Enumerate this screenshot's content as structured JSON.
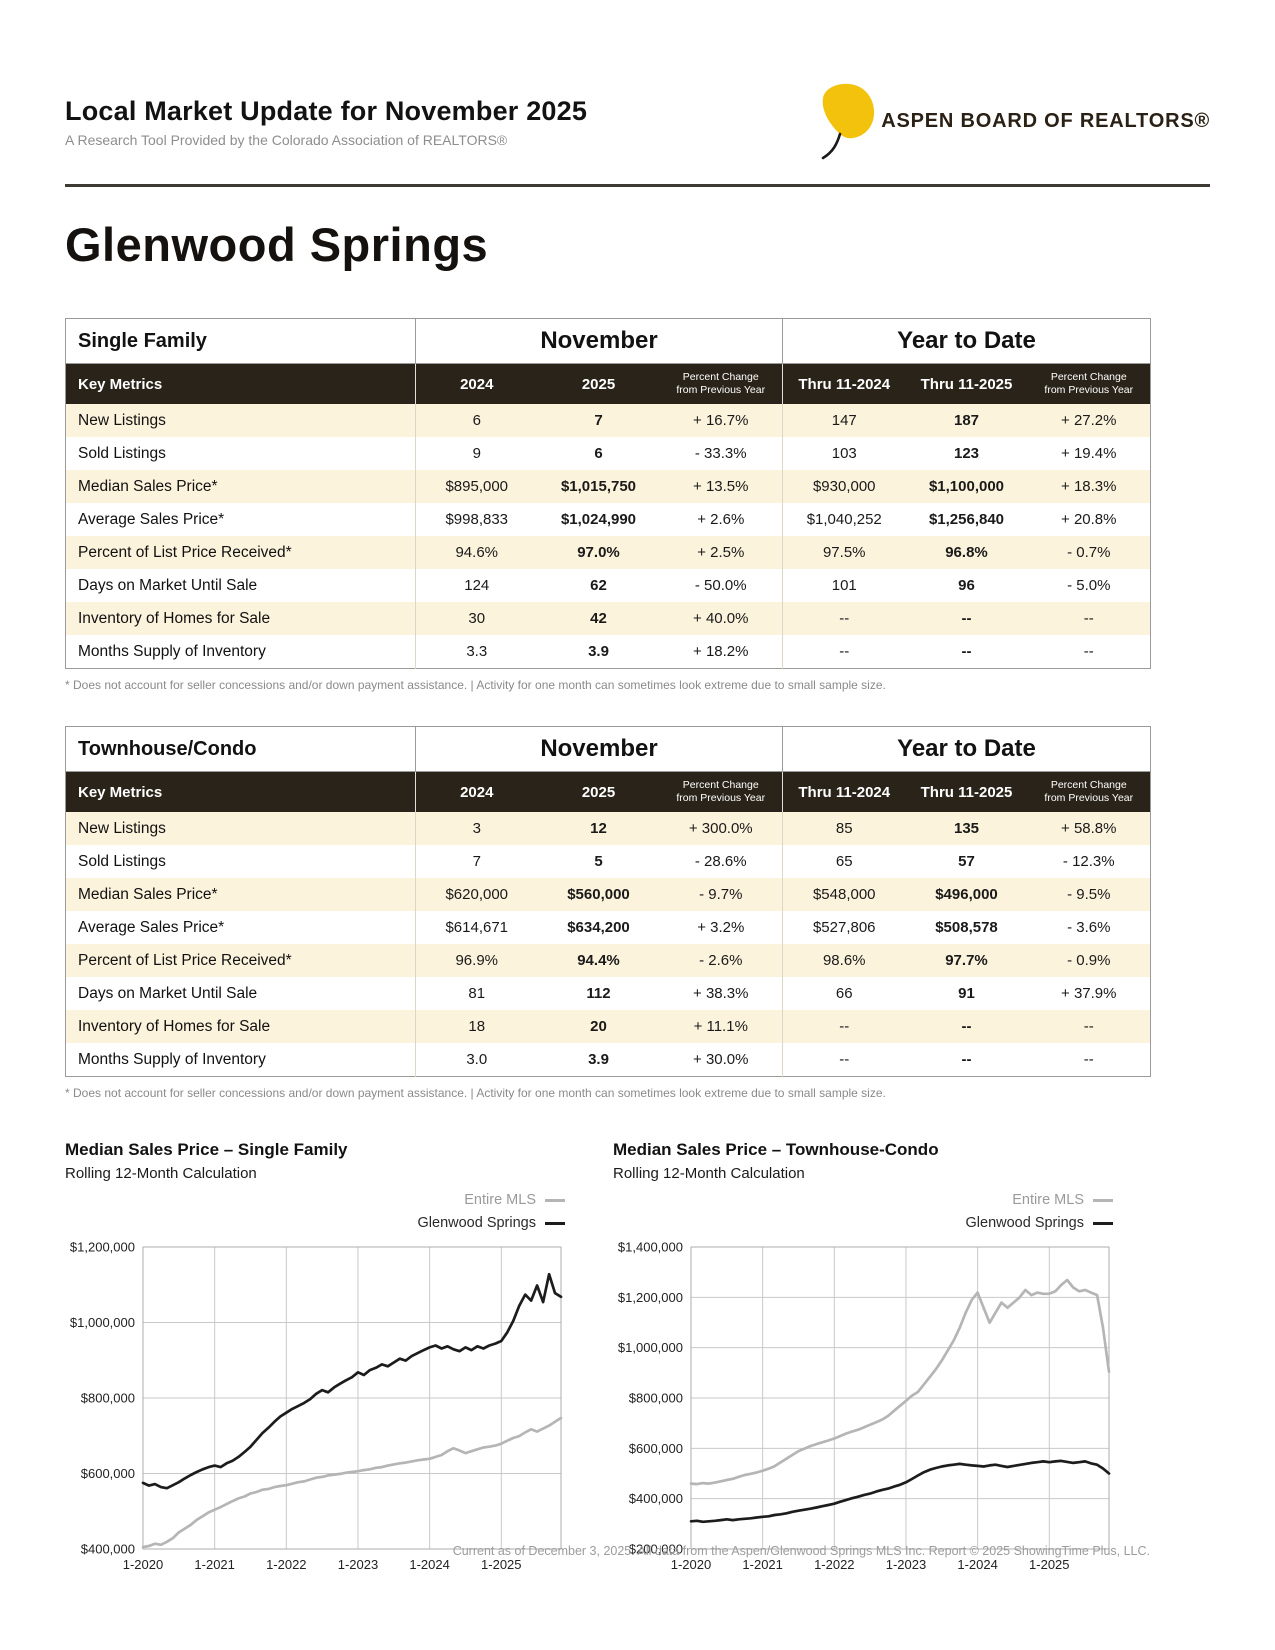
{
  "header": {
    "title": "Local Market Update for November 2025",
    "subtitle": "A Research Tool Provided by the Colorado Association of REALTORS®",
    "logo": {
      "org": "ASPEN BOARD OF REALTORS®",
      "leaf_color": "#f2c20c"
    }
  },
  "page_title": "Glenwood Springs",
  "table_footnote": "* Does not account for seller concessions and/or down payment assistance. | Activity for one month can sometimes look extreme due to small sample size.",
  "tables": [
    {
      "section": "Single Family",
      "group_headers": {
        "month": "November",
        "ytd": "Year to Date"
      },
      "columns": {
        "metrics": "Key Metrics",
        "m2024": "2024",
        "m2025": "2025",
        "pct1": "Percent Change",
        "pct2": "from Previous Year",
        "ytd2024": "Thru 11-2024",
        "ytd2025": "Thru 11-2025"
      },
      "rows": [
        [
          "New Listings",
          "6",
          "7",
          "+ 16.7%",
          "147",
          "187",
          "+ 27.2%"
        ],
        [
          "Sold Listings",
          "9",
          "6",
          "- 33.3%",
          "103",
          "123",
          "+ 19.4%"
        ],
        [
          "Median Sales Price*",
          "$895,000",
          "$1,015,750",
          "+ 13.5%",
          "$930,000",
          "$1,100,000",
          "+ 18.3%"
        ],
        [
          "Average Sales Price*",
          "$998,833",
          "$1,024,990",
          "+ 2.6%",
          "$1,040,252",
          "$1,256,840",
          "+ 20.8%"
        ],
        [
          "Percent of List Price Received*",
          "94.6%",
          "97.0%",
          "+ 2.5%",
          "97.5%",
          "96.8%",
          "- 0.7%"
        ],
        [
          "Days on Market Until Sale",
          "124",
          "62",
          "- 50.0%",
          "101",
          "96",
          "- 5.0%"
        ],
        [
          "Inventory of Homes for Sale",
          "30",
          "42",
          "+ 40.0%",
          "--",
          "--",
          "--"
        ],
        [
          "Months Supply of Inventory",
          "3.3",
          "3.9",
          "+ 18.2%",
          "--",
          "--",
          "--"
        ]
      ]
    },
    {
      "section": "Townhouse/Condo",
      "group_headers": {
        "month": "November",
        "ytd": "Year to Date"
      },
      "columns": {
        "metrics": "Key Metrics",
        "m2024": "2024",
        "m2025": "2025",
        "pct1": "Percent Change",
        "pct2": "from Previous Year",
        "ytd2024": "Thru 11-2024",
        "ytd2025": "Thru 11-2025"
      },
      "rows": [
        [
          "New Listings",
          "3",
          "12",
          "+ 300.0%",
          "85",
          "135",
          "+ 58.8%"
        ],
        [
          "Sold Listings",
          "7",
          "5",
          "- 28.6%",
          "65",
          "57",
          "- 12.3%"
        ],
        [
          "Median Sales Price*",
          "$620,000",
          "$560,000",
          "- 9.7%",
          "$548,000",
          "$496,000",
          "- 9.5%"
        ],
        [
          "Average Sales Price*",
          "$614,671",
          "$634,200",
          "+ 3.2%",
          "$527,806",
          "$508,578",
          "- 3.6%"
        ],
        [
          "Percent of List Price Received*",
          "96.9%",
          "94.4%",
          "- 2.6%",
          "98.6%",
          "97.7%",
          "- 0.9%"
        ],
        [
          "Days on Market Until Sale",
          "81",
          "112",
          "+ 38.3%",
          "66",
          "91",
          "+ 37.9%"
        ],
        [
          "Inventory of Homes for Sale",
          "18",
          "20",
          "+ 11.1%",
          "--",
          "--",
          "--"
        ],
        [
          "Months Supply of Inventory",
          "3.0",
          "3.9",
          "+ 30.0%",
          "--",
          "--",
          "--"
        ]
      ]
    }
  ],
  "charts": [
    {
      "title": "Median Sales Price – Single Family",
      "subtitle": "Rolling 12-Month Calculation",
      "legend": [
        {
          "label": "Entire MLS",
          "color": "#b5b5b5"
        },
        {
          "label": "Glenwood Springs",
          "color": "#1c1c1c"
        }
      ],
      "chart_data": {
        "type": "line",
        "x_range": [
          "2020-01",
          "2025-11"
        ],
        "x_interval": "monthly",
        "x_tick_labels": [
          "1-2020",
          "1-2021",
          "1-2022",
          "1-2023",
          "1-2024",
          "1-2025"
        ],
        "ylim": [
          400000,
          1200000
        ],
        "y_tick_step": 200000,
        "grid": true,
        "legend_position": "top-right",
        "series": [
          {
            "name": "Entire MLS",
            "color": "#b5b5b5",
            "values": [
              405000,
              408000,
              414000,
              411000,
              419000,
              429000,
              444000,
              454000,
              464000,
              477000,
              487000,
              497000,
              504000,
              511000,
              519000,
              527000,
              534000,
              539000,
              547000,
              551000,
              557000,
              559000,
              564000,
              567000,
              569000,
              573000,
              577000,
              579000,
              584000,
              589000,
              591000,
              595000,
              597000,
              599000,
              602000,
              604000,
              606000,
              609000,
              611000,
              615000,
              617000,
              621000,
              624000,
              627000,
              629000,
              632000,
              635000,
              637000,
              639000,
              644000,
              649000,
              659000,
              667000,
              661000,
              654000,
              659000,
              664000,
              669000,
              671000,
              674000,
              679000,
              687000,
              694000,
              699000,
              709000,
              717000,
              711000,
              719000,
              727000,
              737000,
              747000
            ]
          },
          {
            "name": "Glenwood Springs",
            "color": "#1c1c1c",
            "values": [
              575000,
              568000,
              572000,
              564000,
              561000,
              569000,
              577000,
              587000,
              596000,
              604000,
              611000,
              617000,
              621000,
              617000,
              627000,
              634000,
              644000,
              657000,
              671000,
              689000,
              707000,
              721000,
              737000,
              751000,
              761000,
              771000,
              779000,
              787000,
              797000,
              811000,
              821000,
              815000,
              828000,
              838000,
              847000,
              855000,
              868000,
              861000,
              874000,
              880000,
              889000,
              884000,
              894000,
              904000,
              899000,
              911000,
              919000,
              927000,
              934000,
              939000,
              931000,
              937000,
              929000,
              924000,
              934000,
              927000,
              937000,
              931000,
              939000,
              944000,
              951000,
              974000,
              1004000,
              1044000,
              1074000,
              1058000,
              1098000,
              1054000,
              1128000,
              1078000,
              1068000
            ]
          }
        ]
      }
    },
    {
      "title": "Median Sales Price – Townhouse-Condo",
      "subtitle": "Rolling 12-Month Calculation",
      "legend": [
        {
          "label": "Entire MLS",
          "color": "#b5b5b5"
        },
        {
          "label": "Glenwood Springs",
          "color": "#1c1c1c"
        }
      ],
      "chart_data": {
        "type": "line",
        "x_range": [
          "2020-01",
          "2025-11"
        ],
        "x_interval": "monthly",
        "x_tick_labels": [
          "1-2020",
          "1-2021",
          "1-2022",
          "1-2023",
          "1-2024",
          "1-2025"
        ],
        "ylim": [
          200000,
          1400000
        ],
        "y_tick_step": 200000,
        "grid": true,
        "legend_position": "top-right",
        "series": [
          {
            "name": "Entire MLS",
            "color": "#b5b5b5",
            "values": [
              460000,
              458000,
              462000,
              460000,
              464000,
              469000,
              474000,
              479000,
              487000,
              494000,
              499000,
              504000,
              511000,
              519000,
              529000,
              544000,
              559000,
              574000,
              589000,
              599000,
              609000,
              617000,
              624000,
              631000,
              639000,
              649000,
              659000,
              667000,
              674000,
              684000,
              694000,
              704000,
              714000,
              729000,
              749000,
              769000,
              789000,
              809000,
              824000,
              854000,
              884000,
              914000,
              949000,
              989000,
              1029000,
              1079000,
              1139000,
              1189000,
              1219000,
              1159000,
              1099000,
              1139000,
              1179000,
              1159000,
              1179000,
              1199000,
              1229000,
              1209000,
              1219000,
              1214000,
              1214000,
              1224000,
              1249000,
              1269000,
              1239000,
              1224000,
              1229000,
              1219000,
              1209000,
              1079000,
              904000
            ]
          },
          {
            "name": "Glenwood Springs",
            "color": "#1c1c1c",
            "values": [
              310000,
              312000,
              308000,
              310000,
              312000,
              315000,
              318000,
              315000,
              318000,
              320000,
              322000,
              325000,
              328000,
              330000,
              335000,
              338000,
              342000,
              348000,
              352000,
              356000,
              360000,
              365000,
              370000,
              375000,
              380000,
              388000,
              395000,
              402000,
              408000,
              415000,
              420000,
              428000,
              435000,
              440000,
              448000,
              455000,
              465000,
              478000,
              492000,
              505000,
              515000,
              522000,
              528000,
              532000,
              535000,
              538000,
              535000,
              532000,
              530000,
              528000,
              532000,
              535000,
              530000,
              526000,
              530000,
              534000,
              538000,
              542000,
              545000,
              548000,
              545000,
              548000,
              550000,
              546000,
              542000,
              545000,
              548000,
              540000,
              535000,
              520000,
              500000
            ]
          }
        ]
      }
    }
  ],
  "footer": "Current as of December 3, 2025. All data from the Aspen/Glenwood Springs MLS Inc. Report © 2025 ShowingTime Plus, LLC."
}
